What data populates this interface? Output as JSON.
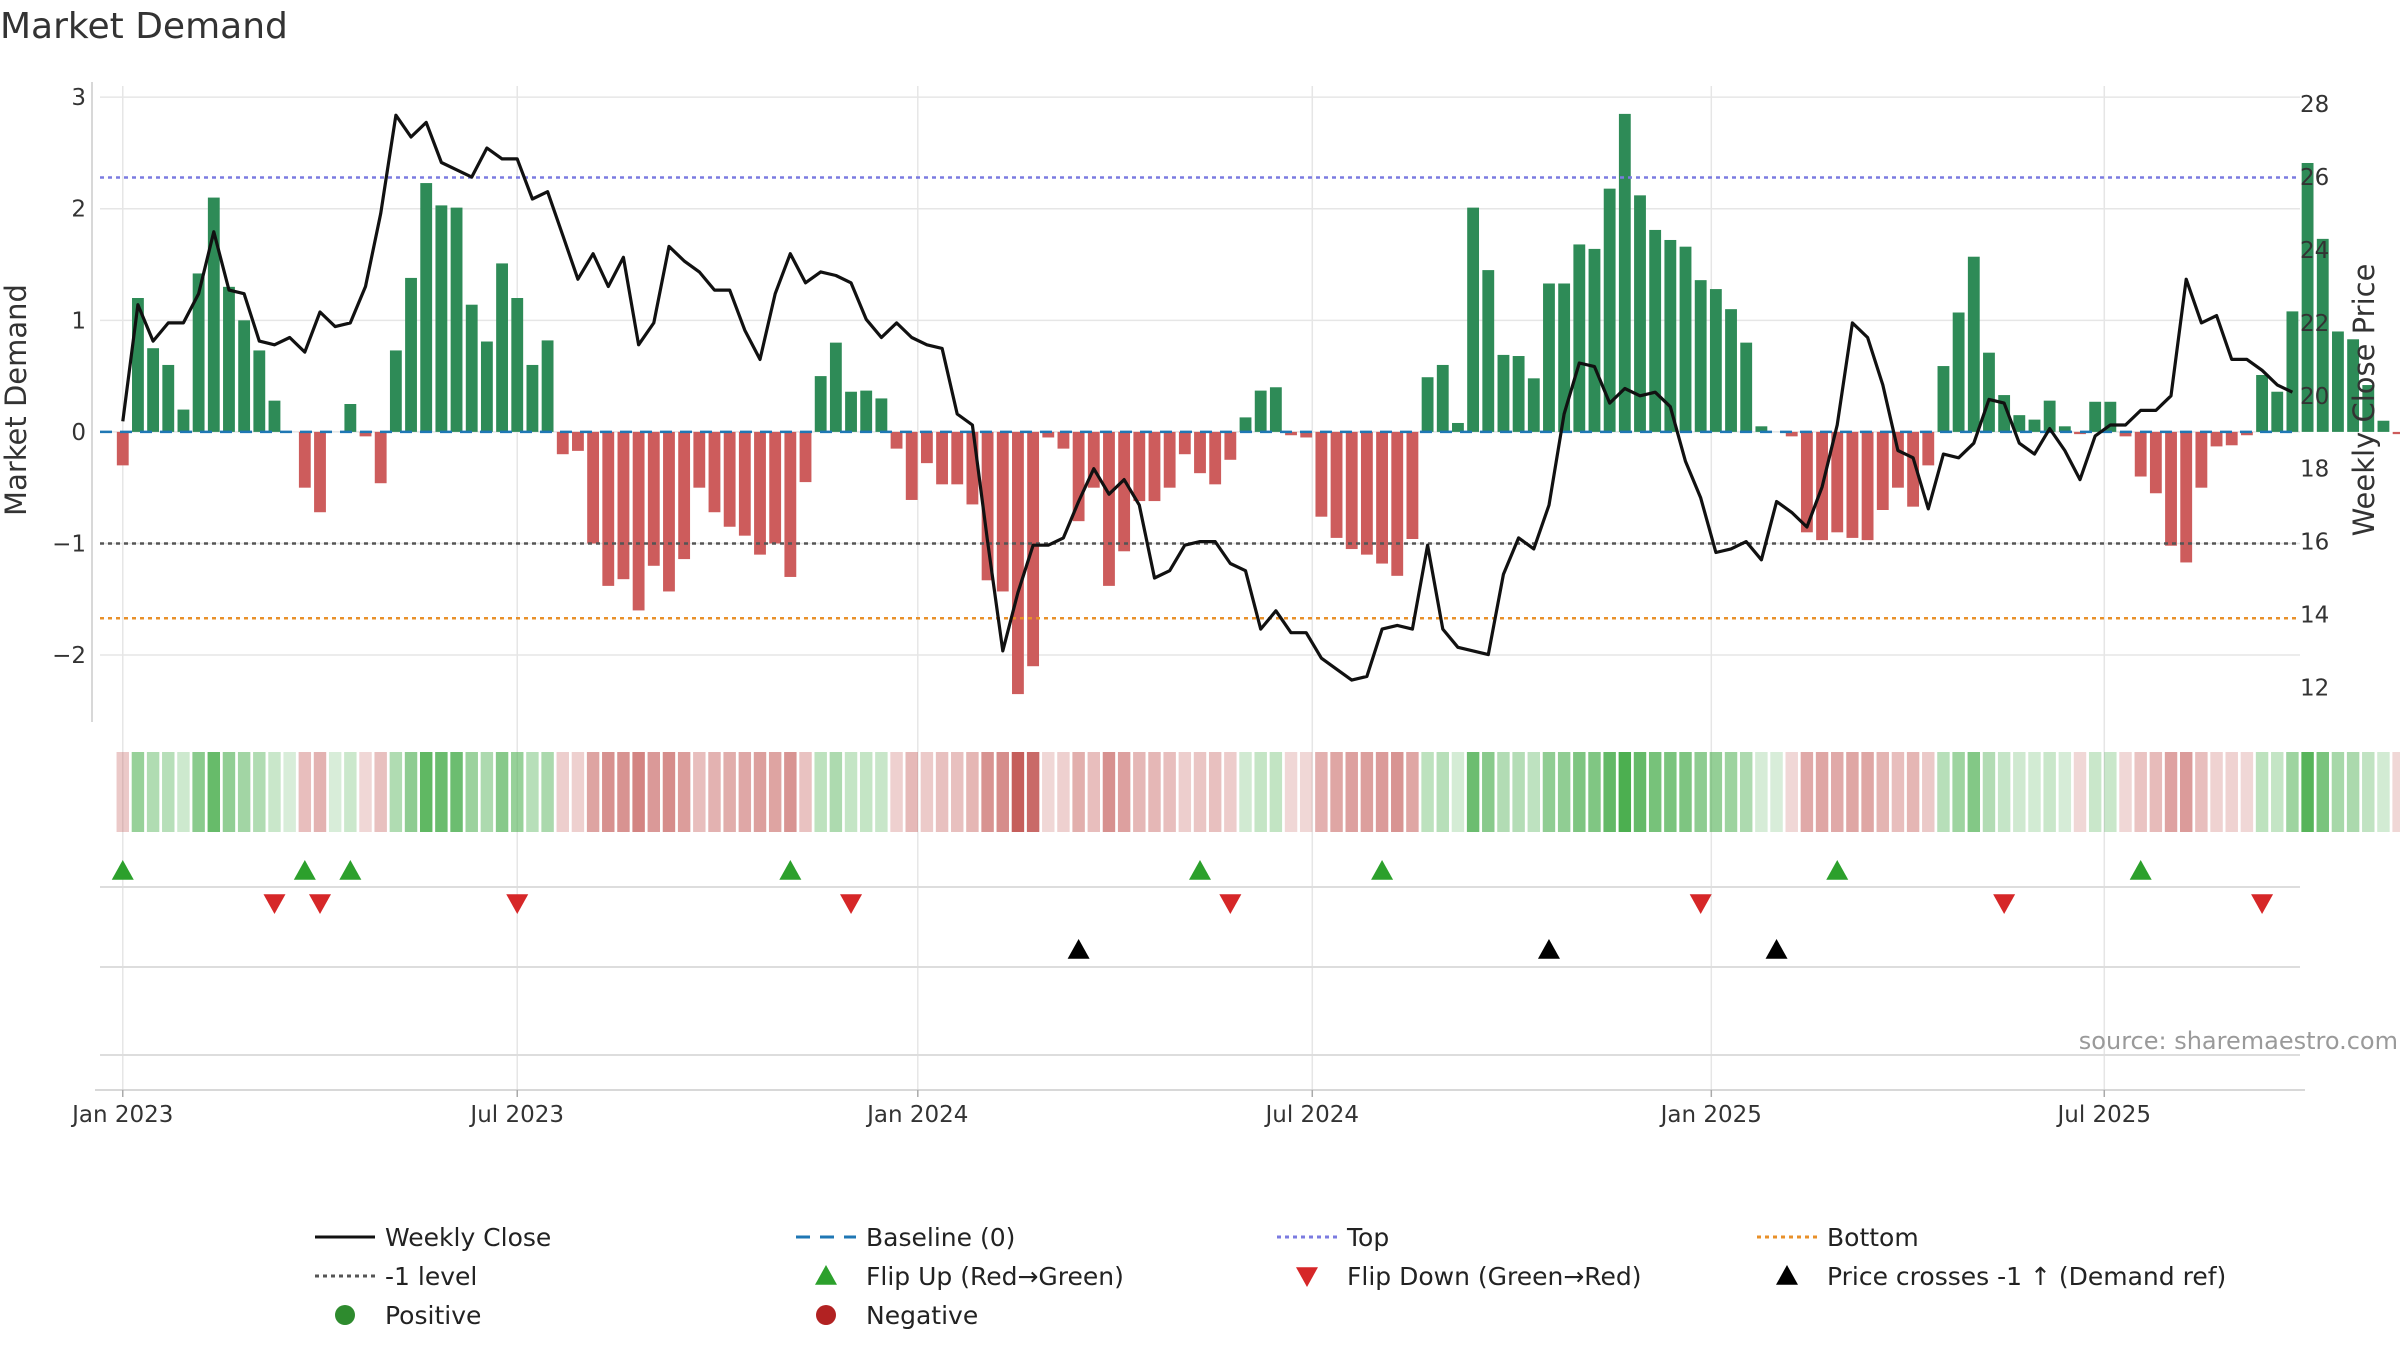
{
  "chart_data": {
    "type": "bar",
    "title": "Market Demand",
    "ylabel": "Market Demand",
    "y2label": "Weekly Close Price",
    "ylim": [
      -2.6,
      3.1
    ],
    "y2lim": [
      11.05,
      28.5
    ],
    "yticks": [
      3,
      2,
      1,
      0,
      -1,
      -2
    ],
    "yticklabels": [
      "3",
      "2",
      "1",
      "0",
      "−1",
      "−2"
    ],
    "y2ticks": [
      28,
      26,
      24,
      22,
      20,
      18,
      16,
      14,
      12
    ],
    "xlim_week": [
      -1.5,
      143.5
    ],
    "xticks": [
      {
        "label": "Jan 2023",
        "week": 0
      },
      {
        "label": "Jul 2023",
        "week": 26
      },
      {
        "label": "Jan 2024",
        "week": 52.4
      },
      {
        "label": "Jul 2024",
        "week": 78.4
      },
      {
        "label": "Jan 2025",
        "week": 104.7
      },
      {
        "label": "Jul 2025",
        "week": 130.6
      }
    ],
    "ref_lines": {
      "top": 2.28,
      "bottom": -1.67,
      "minus_one": -1,
      "baseline": 0
    },
    "x_start": "2023-01-02",
    "x_step_days": 7,
    "demand": [
      -0.3,
      1.2,
      0.75,
      0.6,
      0.2,
      1.42,
      2.1,
      1.3,
      1.0,
      0.73,
      0.28,
      0,
      -0.5,
      -0.72,
      0,
      0.25,
      -0.04,
      -0.46,
      0.73,
      1.38,
      2.23,
      2.03,
      2.01,
      1.14,
      0.81,
      1.51,
      1.2,
      0.6,
      0.82,
      -0.2,
      -0.17,
      -1.0,
      -1.38,
      -1.32,
      -1.6,
      -1.2,
      -1.43,
      -1.14,
      -0.5,
      -0.72,
      -0.85,
      -0.93,
      -1.1,
      -1.0,
      -1.3,
      -0.45,
      0.5,
      0.8,
      0.36,
      0.37,
      0.3,
      -0.15,
      -0.61,
      -0.28,
      -0.47,
      -0.47,
      -0.65,
      -1.33,
      -1.43,
      -2.35,
      -2.1,
      -0.05,
      -0.15,
      -0.8,
      -0.5,
      -1.38,
      -1.07,
      -0.62,
      -0.62,
      -0.5,
      -0.2,
      -0.37,
      -0.47,
      -0.25,
      0.13,
      0.37,
      0.4,
      -0.03,
      -0.05,
      -0.76,
      -0.95,
      -1.05,
      -1.1,
      -1.18,
      -1.29,
      -0.96,
      0.49,
      0.6,
      0.08,
      2.01,
      1.45,
      0.69,
      0.68,
      0.48,
      1.33,
      1.33,
      1.68,
      1.64,
      2.18,
      2.85,
      2.12,
      1.81,
      1.72,
      1.66,
      1.36,
      1.28,
      1.1,
      0.8,
      0.05,
      0,
      -0.04,
      -0.9,
      -0.97,
      -0.9,
      -0.95,
      -0.97,
      -0.7,
      -0.5,
      -0.67,
      -0.3,
      0.59,
      1.07,
      1.57,
      0.71,
      0.33,
      0.15,
      0.11,
      0.28,
      0.05,
      -0.02,
      0.27,
      0.27,
      -0.04,
      -0.4,
      -0.55,
      -1.02,
      -1.17,
      -0.5,
      -0.13,
      -0.12,
      -0.03,
      0.51,
      0.36,
      1.08,
      2.41,
      1.73,
      0.9,
      0.83,
      0.42,
      0.1,
      -0.02,
      -0.08,
      -0.12
    ],
    "close": [
      19.3,
      22.5,
      21.5,
      22,
      22,
      22.8,
      24.5,
      22.9,
      22.8,
      21.5,
      21.4,
      21.6,
      21.2,
      22.3,
      21.9,
      22,
      23,
      25,
      27.7,
      27.1,
      27.5,
      26.4,
      26.2,
      26,
      26.8,
      26.5,
      26.5,
      25.4,
      25.6,
      24.4,
      23.2,
      23.9,
      23,
      23.8,
      21.4,
      22,
      24.1,
      23.7,
      23.4,
      22.9,
      22.9,
      21.8,
      21,
      22.8,
      23.9,
      23.1,
      23.4,
      23.3,
      23.1,
      22.1,
      21.6,
      22,
      21.6,
      21.4,
      21.3,
      19.5,
      19.2,
      16,
      13,
      14.6,
      15.9,
      15.9,
      16.1,
      17.1,
      18,
      17.3,
      17.7,
      17,
      15,
      15.2,
      15.9,
      16,
      16,
      15.4,
      15.2,
      13.6,
      14.1,
      13.5,
      13.5,
      12.8,
      12.5,
      12.2,
      12.3,
      13.6,
      13.7,
      13.6,
      15.9,
      13.6,
      13.1,
      13,
      12.9,
      15.1,
      16.1,
      15.8,
      17,
      19.5,
      20.9,
      20.8,
      19.8,
      20.2,
      20,
      20.1,
      19.7,
      18.2,
      17.2,
      15.7,
      15.8,
      16,
      15.5,
      17.1,
      16.8,
      16.4,
      17.5,
      19.2,
      22,
      21.6,
      20.3,
      18.5,
      18.3,
      16.9,
      18.4,
      18.3,
      18.7,
      19.9,
      19.8,
      18.7,
      18.4,
      19.1,
      18.5,
      17.7,
      18.9,
      19.2,
      19.2,
      19.6,
      19.6,
      20,
      23.2,
      22,
      22.2,
      21,
      21,
      20.7,
      20.3,
      20.1
    ],
    "flip_up_weeks": [
      0,
      12,
      15,
      44,
      71,
      83,
      113,
      133
    ],
    "flip_down_weeks": [
      10,
      13,
      26,
      48,
      73,
      104,
      124,
      141
    ],
    "cross_weeks": [
      63,
      94,
      109
    ],
    "colors": {
      "positive": "#2e8b57",
      "negative": "#cd5c5c",
      "price": "#111111",
      "baseline": "#1f77b4",
      "top": "#7b7be0",
      "bottom": "#e8902a",
      "minus_one": "#555555",
      "flip_up": "#2ca02c",
      "flip_down": "#d62728",
      "cross": "#000000",
      "grid": "#e6e6e6",
      "dot_positive": "#2e8b2e",
      "dot_negative": "#b22222"
    },
    "legend": [
      {
        "label": "Weekly Close",
        "symbol": "line",
        "color": "#111111"
      },
      {
        "label": "Baseline (0)",
        "symbol": "dash",
        "color": "#1f77b4"
      },
      {
        "label": "Top",
        "symbol": "dot",
        "color": "#7b7be0"
      },
      {
        "label": "Bottom",
        "symbol": "dot",
        "color": "#e8902a"
      },
      {
        "label": "-1 level",
        "symbol": "dot",
        "color": "#555555"
      },
      {
        "label": "Flip Up (Red→Green)",
        "symbol": "tri-up",
        "color": "#2ca02c"
      },
      {
        "label": "Flip Down (Green→Red)",
        "symbol": "tri-down",
        "color": "#d62728"
      },
      {
        "label": "Price crosses -1 ↑ (Demand ref)",
        "symbol": "tri-up",
        "color": "#000000"
      },
      {
        "label": "Positive",
        "symbol": "circle",
        "color": "#2e8b2e"
      },
      {
        "label": "Negative",
        "symbol": "circle",
        "color": "#b22222"
      }
    ],
    "source": "source: sharemaestro.com"
  }
}
